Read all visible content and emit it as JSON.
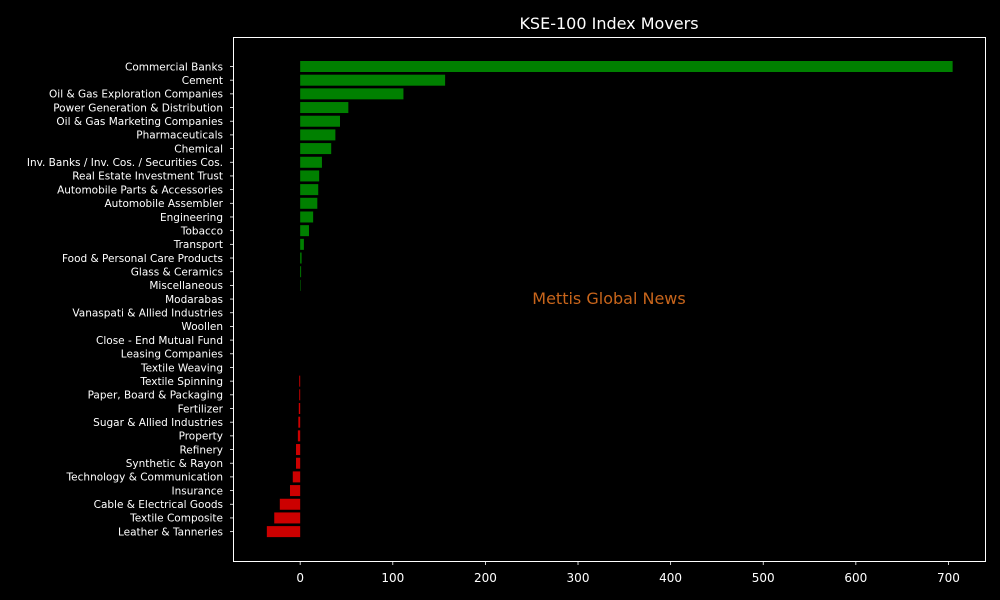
{
  "chart_data": {
    "type": "bar",
    "orientation": "horizontal",
    "title": "KSE-100 Index Movers",
    "xlabel": "",
    "ylabel": "",
    "xlim": [
      -72,
      740
    ],
    "xticks": [
      0,
      100,
      200,
      300,
      400,
      500,
      600,
      700
    ],
    "grid": false,
    "categories": [
      "Commercial Banks",
      "Cement",
      "Oil & Gas Exploration Companies",
      "Power Generation & Distribution",
      "Oil & Gas Marketing Companies",
      "Pharmaceuticals",
      "Chemical",
      "Inv. Banks / Inv. Cos. / Securities Cos.",
      "Real Estate Investment Trust",
      "Automobile Parts & Accessories",
      "Automobile Assembler",
      "Engineering",
      "Tobacco",
      "Transport",
      "Food & Personal Care Products",
      "Glass & Ceramics",
      "Miscellaneous",
      "Modarabas",
      "Vanaspati & Allied Industries",
      "Woollen",
      "Close - End Mutual Fund",
      "Leasing Companies",
      "Textile Weaving",
      "Textile Spinning",
      "Paper, Board & Packaging",
      "Fertilizer",
      "Sugar & Allied Industries",
      "Property",
      "Refinery",
      "Synthetic & Rayon",
      "Technology & Communication",
      "Insurance",
      "Cable & Electrical Goods",
      "Textile Composite",
      "Leather & Tanneries"
    ],
    "values": [
      704.5,
      156.5,
      111.5,
      52.0,
      43.0,
      38.0,
      33.5,
      23.5,
      20.5,
      19.5,
      18.5,
      14.0,
      9.5,
      4.0,
      1.5,
      1.0,
      0.5,
      0.0,
      0.0,
      0.0,
      0.0,
      0.0,
      0.0,
      -1.0,
      -1.0,
      -1.5,
      -2.0,
      -2.5,
      -4.5,
      -4.5,
      -8.0,
      -11.0,
      -22.0,
      -28.0,
      -36.0
    ],
    "colors": {
      "positive": "#008000",
      "negative": "#cc0000",
      "background": "#000000",
      "axes": "#ffffff",
      "text": "#ffffff",
      "watermark": "#c8651b"
    },
    "watermark": "Mettis Global News"
  }
}
